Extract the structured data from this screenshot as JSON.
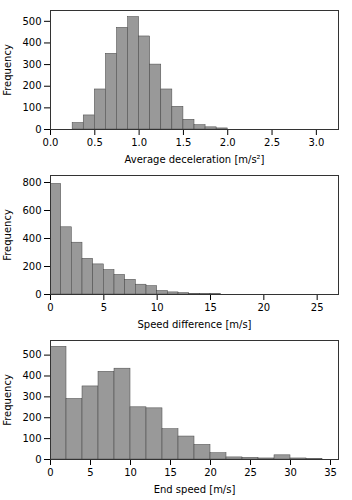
{
  "chart_data": [
    {
      "type": "histogram",
      "xlabel": "Average deceleration [m/s²]",
      "ylabel": "Frequency",
      "bins": [
        0.25,
        0.375,
        0.5,
        0.625,
        0.75,
        0.875,
        1.0,
        1.125,
        1.25,
        1.375,
        1.5,
        1.625,
        1.75,
        1.875,
        2.0
      ],
      "values": [
        30,
        65,
        185,
        350,
        470,
        520,
        430,
        300,
        185,
        105,
        45,
        20,
        10,
        5
      ],
      "color": "#999999",
      "xlim": [
        0,
        3.25
      ],
      "xticks": [
        {
          "value": 0,
          "label": "0.0"
        },
        0.5,
        {
          "value": 1.0,
          "label": "1.0"
        },
        1.5,
        {
          "value": 2.0,
          "label": "2.0"
        },
        2.5,
        {
          "value": 3.0,
          "label": "3.0"
        }
      ],
      "ylim": [
        0,
        550
      ],
      "yticks": [
        0,
        100,
        200,
        300,
        400,
        500
      ]
    },
    {
      "type": "histogram",
      "xlabel": "Speed difference [m/s]",
      "ylabel": "Frequency",
      "bins": [
        0,
        1,
        2,
        3,
        4,
        5,
        6,
        7,
        8,
        9,
        10,
        11,
        12,
        13,
        14,
        15,
        16
      ],
      "values": [
        790,
        480,
        370,
        255,
        215,
        175,
        140,
        105,
        70,
        60,
        25,
        15,
        10,
        5,
        3,
        2
      ],
      "color": "#999999",
      "xlim": [
        0,
        27
      ],
      "xticks": [
        0,
        5,
        10,
        15,
        20,
        25
      ],
      "ylim": [
        0,
        850
      ],
      "yticks": [
        0,
        200,
        400,
        600,
        800
      ]
    },
    {
      "type": "histogram",
      "xlabel": "End speed [m/s]",
      "ylabel": "Frequency",
      "bins": [
        0,
        2,
        4,
        6,
        8,
        10,
        12,
        14,
        16,
        18,
        20,
        22,
        24,
        26,
        28,
        30,
        32,
        34
      ],
      "values": [
        540,
        290,
        350,
        420,
        435,
        250,
        245,
        145,
        110,
        70,
        30,
        10,
        8,
        5,
        20,
        5,
        2
      ],
      "color": "#999999",
      "xlim": [
        0,
        36
      ],
      "xticks": [
        0,
        5,
        10,
        15,
        20,
        25,
        30,
        35
      ],
      "ylim": [
        0,
        570
      ],
      "yticks": [
        0,
        100,
        200,
        300,
        400,
        500
      ]
    }
  ]
}
